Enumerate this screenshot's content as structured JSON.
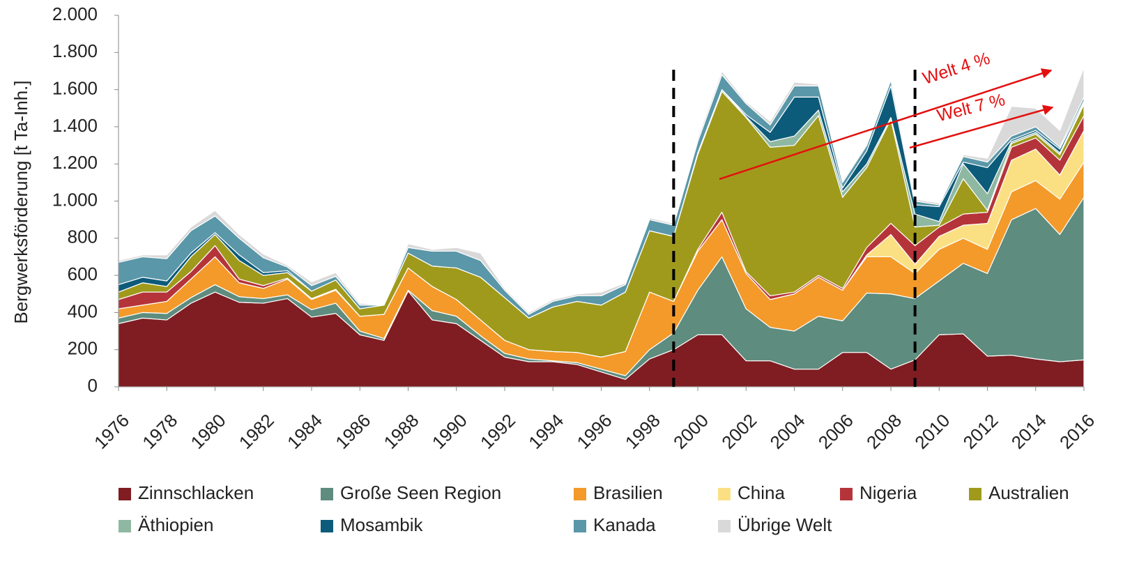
{
  "chart_data": {
    "type": "stacked_area",
    "y_label": "Bergwerksförderung [t Ta-Inh.]",
    "x": [
      1976,
      1977,
      1978,
      1979,
      1980,
      1981,
      1982,
      1983,
      1984,
      1985,
      1986,
      1987,
      1988,
      1989,
      1990,
      1991,
      1992,
      1993,
      1994,
      1995,
      1996,
      1997,
      1998,
      1999,
      2000,
      2001,
      2002,
      2003,
      2004,
      2005,
      2006,
      2007,
      2008,
      2009,
      2010,
      2011,
      2012,
      2013,
      2014,
      2015,
      2016
    ],
    "xlim": [
      1976,
      2016
    ],
    "xticks": [
      1976,
      1978,
      1980,
      1982,
      1984,
      1986,
      1988,
      1990,
      1992,
      1994,
      1996,
      1998,
      2000,
      2002,
      2004,
      2006,
      2008,
      2010,
      2012,
      2014,
      2016
    ],
    "ylim": [
      0,
      2000
    ],
    "yticks": [
      0,
      200,
      400,
      600,
      800,
      {
        "value": 1000,
        "label": "1.000"
      },
      {
        "value": 1200,
        "label": "1.200"
      },
      {
        "value": 1400,
        "label": "1.400"
      },
      {
        "value": 1600,
        "label": "1.600"
      },
      {
        "value": 1800,
        "label": "1.800"
      },
      {
        "value": 2000,
        "label": "2.000"
      }
    ],
    "markers": [
      1999,
      2009
    ],
    "annotations": [
      "Welt 4 %",
      "Welt 7 %"
    ],
    "series": [
      {
        "name": "Zinnschlacken",
        "color": "#7f1d22",
        "values": [
          340,
          370,
          360,
          450,
          510,
          455,
          450,
          475,
          375,
          395,
          280,
          250,
          515,
          360,
          340,
          250,
          160,
          135,
          135,
          120,
          80,
          40,
          150,
          200,
          280,
          280,
          140,
          140,
          95,
          95,
          185,
          185,
          95,
          145,
          280,
          285,
          165,
          170,
          150,
          135,
          145
        ]
      },
      {
        "name": "Große Seen Region",
        "color": "#5e8c7e",
        "values": [
          30,
          30,
          35,
          30,
          40,
          30,
          25,
          20,
          40,
          55,
          20,
          10,
          5,
          50,
          40,
          25,
          20,
          15,
          5,
          10,
          15,
          20,
          50,
          90,
          240,
          420,
          280,
          180,
          205,
          285,
          170,
          320,
          405,
          330,
          290,
          380,
          445,
          730,
          810,
          685,
          875
        ]
      },
      {
        "name": "Brasilien",
        "color": "#f39a2a",
        "values": [
          50,
          40,
          65,
          100,
          150,
          75,
          55,
          85,
          55,
          70,
          80,
          130,
          120,
          130,
          90,
          85,
          70,
          50,
          50,
          55,
          65,
          130,
          310,
          170,
          210,
          200,
          190,
          150,
          200,
          210,
          165,
          195,
          200,
          135,
          170,
          135,
          130,
          150,
          150,
          190,
          190
        ]
      },
      {
        "name": "China",
        "color": "#fbe083",
        "values": [
          0,
          0,
          0,
          0,
          0,
          0,
          0,
          0,
          0,
          0,
          0,
          0,
          0,
          0,
          0,
          0,
          0,
          0,
          0,
          0,
          0,
          0,
          0,
          0,
          0,
          0,
          0,
          0,
          0,
          0,
          0,
          10,
          120,
          50,
          70,
          70,
          140,
          170,
          170,
          130,
          170
        ]
      },
      {
        "name": "Nigeria",
        "color": "#b5343a",
        "values": [
          50,
          70,
          50,
          40,
          60,
          20,
          15,
          5,
          5,
          5,
          0,
          0,
          0,
          0,
          0,
          0,
          0,
          0,
          0,
          0,
          0,
          0,
          0,
          0,
          10,
          40,
          10,
          20,
          10,
          10,
          10,
          40,
          60,
          100,
          50,
          60,
          60,
          70,
          60,
          80,
          80
        ]
      },
      {
        "name": "Australien",
        "color": "#a09a1c",
        "values": [
          40,
          50,
          30,
          80,
          60,
          100,
          55,
          30,
          40,
          50,
          40,
          50,
          80,
          110,
          170,
          230,
          230,
          170,
          240,
          275,
          280,
          320,
          330,
          350,
          510,
          650,
          830,
          800,
          790,
          860,
          490,
          430,
          560,
          100,
          10,
          190,
          10,
          20,
          20,
          30,
          60
        ]
      },
      {
        "name": "Äthiopien",
        "color": "#8fb8a2",
        "values": [
          0,
          0,
          0,
          0,
          0,
          0,
          0,
          0,
          0,
          0,
          0,
          0,
          0,
          0,
          0,
          0,
          0,
          0,
          0,
          0,
          0,
          0,
          0,
          0,
          10,
          10,
          5,
          30,
          50,
          30,
          30,
          20,
          10,
          70,
          20,
          80,
          90,
          10,
          10,
          10,
          10
        ]
      },
      {
        "name": "Mosambik",
        "color": "#0d5b7a",
        "values": [
          40,
          30,
          30,
          20,
          10,
          30,
          15,
          10,
          0,
          0,
          0,
          0,
          0,
          0,
          0,
          0,
          0,
          0,
          0,
          0,
          0,
          0,
          0,
          0,
          0,
          0,
          10,
          50,
          210,
          70,
          20,
          70,
          170,
          50,
          80,
          10,
          140,
          10,
          10,
          20,
          10
        ]
      },
      {
        "name": "Kanada",
        "color": "#5a97a8",
        "values": [
          120,
          110,
          120,
          120,
          90,
          90,
          80,
          20,
          30,
          20,
          20,
          0,
          30,
          80,
          90,
          90,
          40,
          20,
          30,
          30,
          50,
          40,
          60,
          60,
          60,
          80,
          60,
          40,
          60,
          60,
          30,
          30,
          30,
          20,
          10,
          30,
          30,
          20,
          20,
          10,
          20
        ]
      },
      {
        "name": "Übrige Welt",
        "color": "#d9d9d9",
        "values": [
          10,
          10,
          20,
          20,
          30,
          20,
          20,
          10,
          20,
          20,
          10,
          0,
          20,
          10,
          20,
          40,
          10,
          10,
          10,
          10,
          20,
          10,
          10,
          10,
          20,
          20,
          10,
          20,
          20,
          10,
          10,
          10,
          10,
          10,
          10,
          10,
          20,
          160,
          100,
          90,
          160
        ]
      }
    ]
  }
}
